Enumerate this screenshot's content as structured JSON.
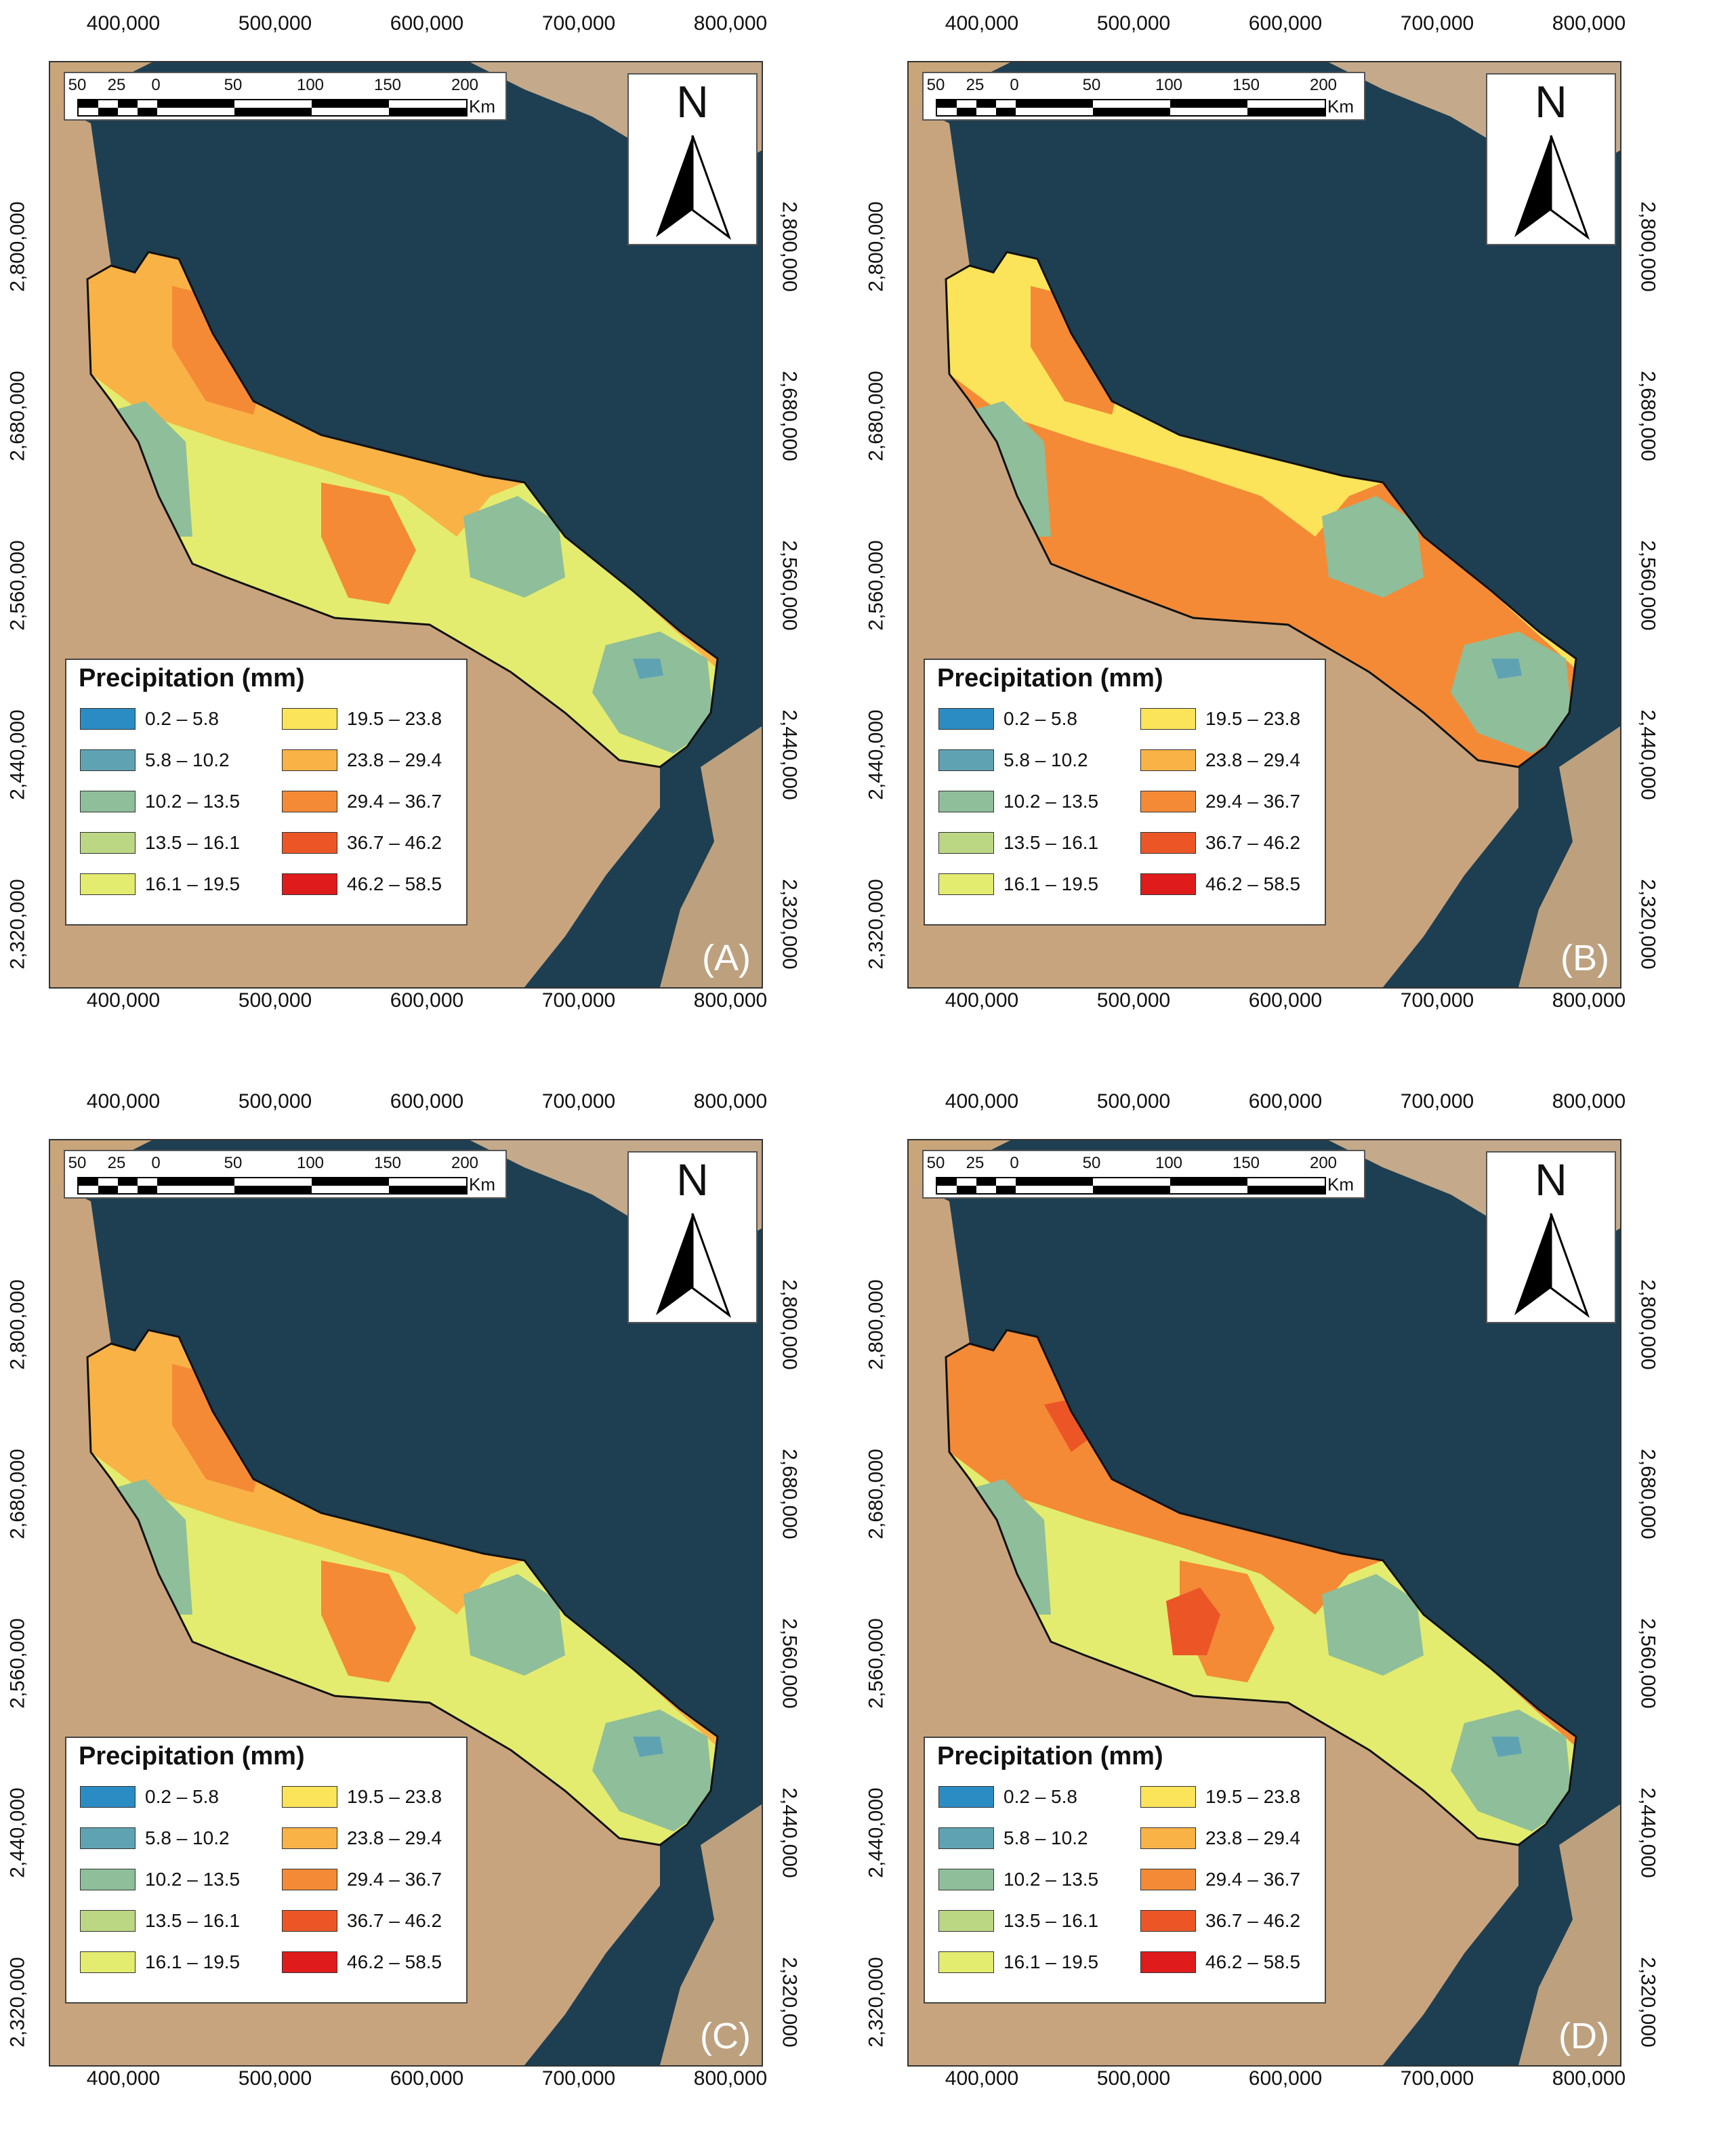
{
  "x_ticks": [
    "400,000",
    "500,000",
    "600,000",
    "700,000",
    "800,000"
  ],
  "y_ticks": [
    "2,800,000",
    "2,680,000",
    "2,560,000",
    "2,440,000",
    "2,320,000"
  ],
  "scale_bar": {
    "labels": [
      "50",
      "25",
      "0",
      "50",
      "100",
      "150",
      "200"
    ],
    "unit": "Km"
  },
  "north_label": "N",
  "legend": {
    "title": "Precipitation (mm)",
    "classes": [
      {
        "label": "0.2 – 5.8",
        "color": "#2b8cc4"
      },
      {
        "label": "5.8 – 10.2",
        "color": "#5fa3b3"
      },
      {
        "label": "10.2 – 13.5",
        "color": "#8fbe9a"
      },
      {
        "label": "13.5 – 16.1",
        "color": "#bcd784"
      },
      {
        "label": "16.1 – 19.5",
        "color": "#e3ec6f"
      },
      {
        "label": "19.5 – 23.8",
        "color": "#fbe35a"
      },
      {
        "label": "23.8 – 29.4",
        "color": "#f9b246"
      },
      {
        "label": "29.4 – 36.7",
        "color": "#f48a36"
      },
      {
        "label": "36.7 – 46.2",
        "color": "#ec5626"
      },
      {
        "label": "46.2 – 58.5",
        "color": "#e01b1b"
      }
    ]
  },
  "panels": [
    {
      "label": "(A)",
      "dominant": [
        "#f9b246",
        "#e3ec6f",
        "#8fbe9a"
      ]
    },
    {
      "label": "(B)",
      "dominant": [
        "#fbe35a",
        "#f48a36",
        "#8fbe9a"
      ]
    },
    {
      "label": "(C)",
      "dominant": [
        "#f9b246",
        "#e3ec6f",
        "#8fbe9a"
      ]
    },
    {
      "label": "(D)",
      "dominant": [
        "#f48a36",
        "#e3ec6f",
        "#8fbe9a"
      ]
    }
  ]
}
